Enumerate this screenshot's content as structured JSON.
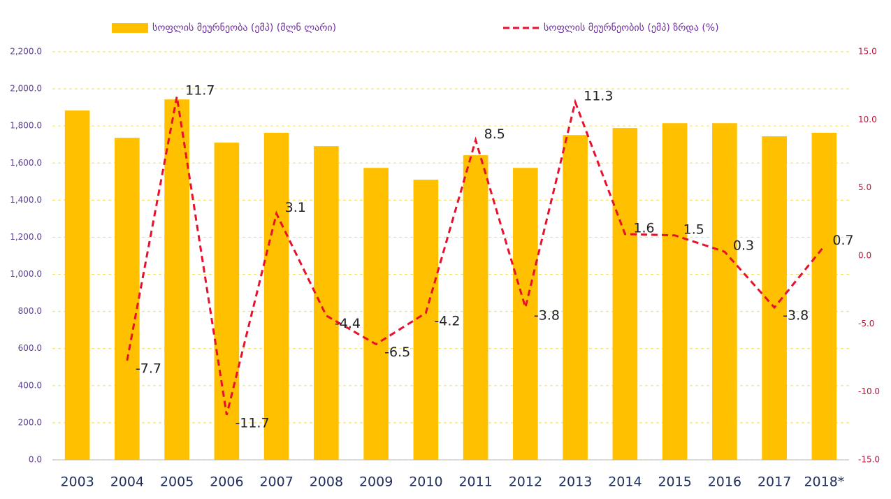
{
  "chart_data": {
    "type": "bar+line",
    "categories": [
      "2003",
      "2004",
      "2005",
      "2006",
      "2007",
      "2008",
      "2009",
      "2010",
      "2011",
      "2012",
      "2013",
      "2014",
      "2015",
      "2016",
      "2017",
      "2018*"
    ],
    "series": [
      {
        "name": "სოფლის მეურნეობა (ემპ) (მლნ ლარი)",
        "type": "bar",
        "color": "#ffc000",
        "values": [
          1883,
          1736,
          1943,
          1710,
          1763,
          1691,
          1574,
          1510,
          1642,
          1574,
          1751,
          1789,
          1815,
          1815,
          1744,
          1763
        ]
      },
      {
        "name": "სოფლის მეურნეობის (ემპ) ზრდა (%)",
        "type": "line",
        "axis": "y2",
        "color": "#e8112d",
        "dashed": true,
        "values": [
          null,
          -7.7,
          11.7,
          -11.7,
          3.1,
          -4.4,
          -6.5,
          -4.2,
          8.5,
          -3.8,
          11.3,
          1.6,
          1.5,
          0.3,
          -3.8,
          0.7
        ]
      }
    ],
    "ylim": [
      0,
      2200
    ],
    "yticks": [
      {
        "value": 0,
        "label": "0.0"
      },
      {
        "value": 200,
        "label": "200.0"
      },
      {
        "value": 400,
        "label": "400.0"
      },
      {
        "value": 600,
        "label": "600.0"
      },
      {
        "value": 800,
        "label": "800.0"
      },
      {
        "value": 1000,
        "label": "1,000.0"
      },
      {
        "value": 1200,
        "label": "1,200.0"
      },
      {
        "value": 1400,
        "label": "1,400.0"
      },
      {
        "value": 1600,
        "label": "1,600.0"
      },
      {
        "value": 1800,
        "label": "1,800.0"
      },
      {
        "value": 2000,
        "label": "2,000.0"
      },
      {
        "value": 2200,
        "label": "2,200.0"
      }
    ],
    "y2lim": [
      -15,
      15
    ],
    "y2ticks": [
      {
        "value": -15,
        "label": "-15.0"
      },
      {
        "value": -10,
        "label": "-10.0"
      },
      {
        "value": -5,
        "label": "-5.0"
      },
      {
        "value": 0,
        "label": "0.0"
      },
      {
        "value": 5,
        "label": "5.0"
      },
      {
        "value": 10,
        "label": "10.0"
      },
      {
        "value": 15,
        "label": "15.0"
      }
    ],
    "grid": true,
    "legend": "top"
  }
}
